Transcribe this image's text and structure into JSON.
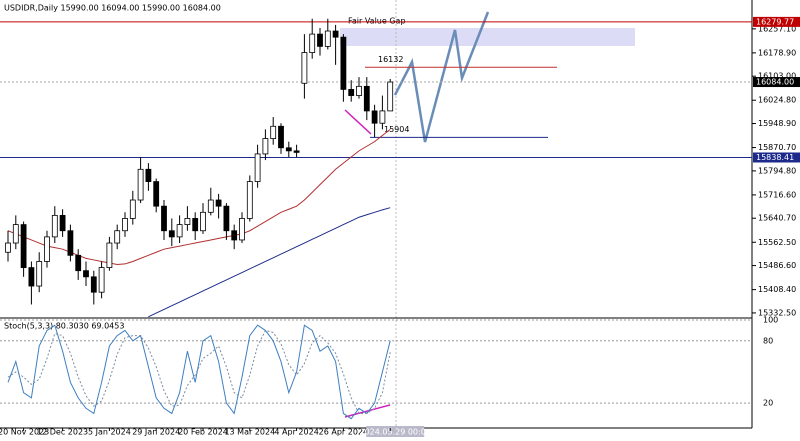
{
  "chart_data": [
    {
      "type": "candlestick",
      "title": "USDIDR,Daily  15990.00 16094.00 15990.00 16084.00",
      "categories": [
        null,
        null,
        "20 Nov 2023",
        null,
        null,
        null,
        null,
        "12 Dec 2023",
        null,
        null,
        null,
        null,
        null,
        "5 Jan 2024",
        null,
        null,
        null,
        null,
        null,
        "29 Jan 2024",
        null,
        null,
        null,
        null,
        null,
        "20 Feb 2024",
        null,
        null,
        null,
        null,
        null,
        "13 Mar 2024",
        null,
        null,
        null,
        null,
        null,
        "4 Apr 2024",
        null,
        null,
        null,
        null,
        null,
        "26 Apr 2024",
        null,
        null,
        null,
        null,
        null,
        "2024.05.29 00:00"
      ],
      "open": [
        15530,
        15560,
        15620,
        15480,
        15420,
        15500,
        15580,
        15650,
        15600,
        15520,
        15470,
        15450,
        15400,
        15480,
        15560,
        15600,
        15640,
        15700,
        15800,
        15760,
        15680,
        15600,
        15580,
        15620,
        15640,
        15600,
        15660,
        15700,
        15680,
        15600,
        15570,
        15640,
        15760,
        15850,
        15900,
        15940,
        15870,
        15860,
        16080,
        16180,
        16240,
        16200,
        16250,
        16230,
        16060,
        16040,
        16070,
        15990,
        15950,
        15990
      ],
      "high": [
        15600,
        15650,
        15630,
        15500,
        15530,
        15600,
        15680,
        15670,
        15620,
        15540,
        15500,
        15470,
        15500,
        15580,
        15620,
        15660,
        15730,
        15840,
        15820,
        15770,
        15700,
        15640,
        15650,
        15680,
        15660,
        15690,
        15740,
        15720,
        15690,
        15620,
        15660,
        15780,
        15880,
        15930,
        15970,
        15950,
        15890,
        15880,
        16240,
        16290,
        16260,
        16290,
        16270,
        16240,
        16090,
        16100,
        16100,
        16010,
        16040,
        16094
      ],
      "low": [
        15500,
        15540,
        15450,
        15360,
        15400,
        15480,
        15560,
        15580,
        15500,
        15440,
        15420,
        15360,
        15380,
        15470,
        15540,
        15580,
        15620,
        15690,
        15730,
        15660,
        15570,
        15550,
        15560,
        15600,
        15570,
        15590,
        15650,
        15640,
        15570,
        15540,
        15560,
        15630,
        15740,
        15830,
        15880,
        15850,
        15840,
        15840,
        16030,
        16160,
        16170,
        16190,
        16140,
        16020,
        16020,
        16030,
        15960,
        15904,
        15930,
        15990
      ],
      "close": [
        15560,
        15620,
        15480,
        15420,
        15500,
        15580,
        15650,
        15600,
        15520,
        15470,
        15450,
        15400,
        15480,
        15560,
        15600,
        15640,
        15700,
        15800,
        15760,
        15680,
        15600,
        15580,
        15620,
        15640,
        15600,
        15660,
        15700,
        15680,
        15600,
        15570,
        15640,
        15760,
        15850,
        15900,
        15940,
        15870,
        15860,
        15855,
        16180,
        16240,
        16200,
        16250,
        16230,
        16060,
        16040,
        16070,
        15990,
        15950,
        15990,
        16084
      ],
      "lines": [
        {
          "color": "#b03030",
          "values": [
            15600,
            15590,
            15580,
            15570,
            15560,
            15550,
            15545,
            15540,
            15530,
            15520,
            15510,
            15505,
            15500,
            15495,
            15490,
            15492,
            15500,
            15510,
            15520,
            15530,
            15540,
            15545,
            15550,
            15555,
            15560,
            15565,
            15570,
            15575,
            15580,
            15585,
            15590,
            15600,
            15615,
            15630,
            15645,
            15660,
            15670,
            15680,
            15700,
            15725,
            15750,
            15775,
            15800,
            15820,
            15840,
            15860,
            15875,
            15890,
            15910,
            15930
          ]
        },
        {
          "color": "#1c2a8c",
          "values": [
            null,
            null,
            null,
            null,
            null,
            null,
            null,
            null,
            null,
            null,
            null,
            null,
            null,
            null,
            null,
            null,
            null,
            null,
            15320,
            15332,
            15344,
            15356,
            15368,
            15380,
            15392,
            15404,
            15416,
            15428,
            15440,
            15452,
            15464,
            15476,
            15488,
            15500,
            15512,
            15524,
            15536,
            15548,
            15560,
            15572,
            15584,
            15596,
            15608,
            15620,
            15632,
            15644,
            15652,
            15660,
            15668,
            15675
          ]
        }
      ],
      "levels": [
        {
          "value": 16279.77,
          "color": "#c00000"
        },
        {
          "value": 16084,
          "label": "16084.00",
          "color": "#000000"
        },
        {
          "value": 15838.41,
          "color": "#1c2a8c"
        }
      ],
      "annotations": {
        "gap_label": "Fair Value Gap",
        "resistance": 16132,
        "support": 15904
      },
      "ylim": [
        15316,
        16351
      ],
      "yticks": [
        {
          "value": 16257.1,
          "label": "16257.10"
        },
        {
          "value": 16178.9,
          "label": "16178.90"
        },
        {
          "value": 16103,
          "label": "16103.00"
        },
        {
          "value": 16024.8,
          "label": "16024.80"
        },
        {
          "value": 15948.9,
          "label": "15948.90"
        },
        {
          "value": 15870.7,
          "label": "15870.70"
        },
        {
          "value": 15794.8,
          "label": "15794.80"
        },
        {
          "value": 15716.6,
          "label": "15716.60"
        },
        {
          "value": 15640.7,
          "label": "15640.70"
        },
        {
          "value": 15562.5,
          "label": "15562.50"
        },
        {
          "value": 15486.6,
          "label": "15486.60"
        },
        {
          "value": 15408.4,
          "label": "15408.40"
        },
        {
          "value": 15332.5,
          "label": "15332.50"
        }
      ]
    },
    {
      "type": "line",
      "title": "Stoch(5,3,3) 80.3030 69.0453",
      "series": [
        {
          "color": "#3d7fc1",
          "values": [
            40,
            60,
            30,
            25,
            75,
            90,
            95,
            70,
            40,
            25,
            15,
            10,
            40,
            75,
            85,
            90,
            80,
            85,
            55,
            25,
            15,
            10,
            30,
            70,
            40,
            80,
            85,
            60,
            20,
            10,
            45,
            85,
            95,
            90,
            80,
            60,
            30,
            50,
            95,
            90,
            70,
            75,
            60,
            10,
            5,
            15,
            10,
            20,
            50,
            80
          ]
        },
        {
          "color": "#7a8aa0",
          "dashed": true,
          "values": [
            45,
            50,
            45,
            38,
            43,
            63,
            87,
            85,
            68,
            45,
            27,
            17,
            22,
            42,
            67,
            83,
            85,
            85,
            73,
            55,
            32,
            17,
            18,
            37,
            47,
            63,
            68,
            75,
            55,
            30,
            25,
            47,
            75,
            90,
            88,
            77,
            57,
            47,
            58,
            78,
            85,
            78,
            68,
            48,
            25,
            10,
            10,
            15,
            30,
            69
          ]
        }
      ],
      "ylim": [
        -4,
        101
      ],
      "yticks": [
        100,
        80,
        20
      ]
    }
  ]
}
